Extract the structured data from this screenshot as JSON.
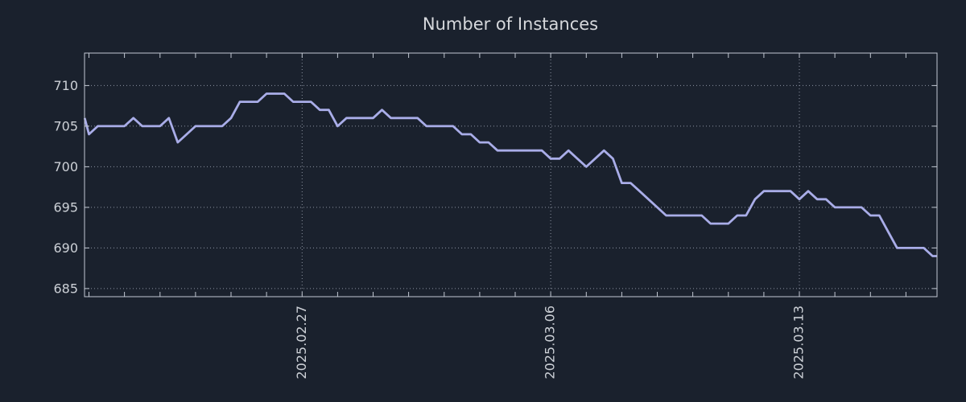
{
  "style": {
    "background": "#1a212d",
    "title_color": "#d6d8dc",
    "axis_color": "#c2c8d2",
    "grid_color": "#8d94a2",
    "tick_label_color": "#ccd0d6",
    "line_color": "#a9ade8"
  },
  "chart_data": {
    "type": "line",
    "title": "Number of Instances",
    "legend": "none",
    "grid": "dotted",
    "y_axis": {
      "ticks": [
        685,
        690,
        695,
        700,
        705,
        710
      ],
      "range": [
        684,
        714
      ]
    },
    "x_axis": {
      "tick_labels": [
        {
          "label": "2025.02.27",
          "day": 6
        },
        {
          "label": "2025.03.06",
          "day": 13
        },
        {
          "label": "2025.03.13",
          "day": 20
        }
      ],
      "minor_tick_days_start": 0,
      "minor_tick_days_end": 23,
      "domain_days": [
        -0.125,
        23.875
      ]
    },
    "series": [
      {
        "name": "Number of Instances",
        "color": "#a9ade8",
        "points": [
          [
            -0.12,
            706
          ],
          [
            0,
            704
          ],
          [
            0.25,
            705
          ],
          [
            0.5,
            705
          ],
          [
            0.75,
            705
          ],
          [
            1,
            705
          ],
          [
            1.25,
            706
          ],
          [
            1.5,
            705
          ],
          [
            1.75,
            705
          ],
          [
            2,
            705
          ],
          [
            2.25,
            706
          ],
          [
            2.5,
            703
          ],
          [
            2.75,
            704
          ],
          [
            3,
            705
          ],
          [
            3.25,
            705
          ],
          [
            3.5,
            705
          ],
          [
            3.75,
            705
          ],
          [
            4,
            706
          ],
          [
            4.25,
            708
          ],
          [
            4.5,
            708
          ],
          [
            4.75,
            708
          ],
          [
            5,
            709
          ],
          [
            5.25,
            709
          ],
          [
            5.5,
            709
          ],
          [
            5.75,
            708
          ],
          [
            6,
            708
          ],
          [
            6.25,
            708
          ],
          [
            6.5,
            707
          ],
          [
            6.75,
            707
          ],
          [
            7,
            705
          ],
          [
            7.25,
            706
          ],
          [
            7.5,
            706
          ],
          [
            7.75,
            706
          ],
          [
            8,
            706
          ],
          [
            8.25,
            707
          ],
          [
            8.5,
            706
          ],
          [
            8.75,
            706
          ],
          [
            9,
            706
          ],
          [
            9.25,
            706
          ],
          [
            9.5,
            705
          ],
          [
            9.75,
            705
          ],
          [
            10,
            705
          ],
          [
            10.25,
            705
          ],
          [
            10.5,
            704
          ],
          [
            10.75,
            704
          ],
          [
            11,
            703
          ],
          [
            11.25,
            703
          ],
          [
            11.5,
            702
          ],
          [
            11.75,
            702
          ],
          [
            12,
            702
          ],
          [
            12.25,
            702
          ],
          [
            12.5,
            702
          ],
          [
            12.75,
            702
          ],
          [
            13,
            701
          ],
          [
            13.25,
            701
          ],
          [
            13.5,
            702
          ],
          [
            13.75,
            701
          ],
          [
            14,
            700
          ],
          [
            14.25,
            701
          ],
          [
            14.5,
            702
          ],
          [
            14.75,
            701
          ],
          [
            15,
            698
          ],
          [
            15.25,
            698
          ],
          [
            15.5,
            697
          ],
          [
            15.75,
            696
          ],
          [
            16,
            695
          ],
          [
            16.25,
            694
          ],
          [
            16.5,
            694
          ],
          [
            16.75,
            694
          ],
          [
            17,
            694
          ],
          [
            17.25,
            694
          ],
          [
            17.5,
            693
          ],
          [
            17.75,
            693
          ],
          [
            18,
            693
          ],
          [
            18.25,
            694
          ],
          [
            18.5,
            694
          ],
          [
            18.75,
            696
          ],
          [
            19,
            697
          ],
          [
            19.25,
            697
          ],
          [
            19.5,
            697
          ],
          [
            19.75,
            697
          ],
          [
            20,
            696
          ],
          [
            20.25,
            697
          ],
          [
            20.5,
            696
          ],
          [
            20.75,
            696
          ],
          [
            21,
            695
          ],
          [
            21.25,
            695
          ],
          [
            21.5,
            695
          ],
          [
            21.75,
            695
          ],
          [
            22,
            694
          ],
          [
            22.25,
            694
          ],
          [
            22.5,
            692
          ],
          [
            22.75,
            690
          ],
          [
            23,
            690
          ],
          [
            23.25,
            690
          ],
          [
            23.5,
            690
          ],
          [
            23.75,
            689
          ],
          [
            23.88,
            689
          ]
        ]
      }
    ]
  }
}
